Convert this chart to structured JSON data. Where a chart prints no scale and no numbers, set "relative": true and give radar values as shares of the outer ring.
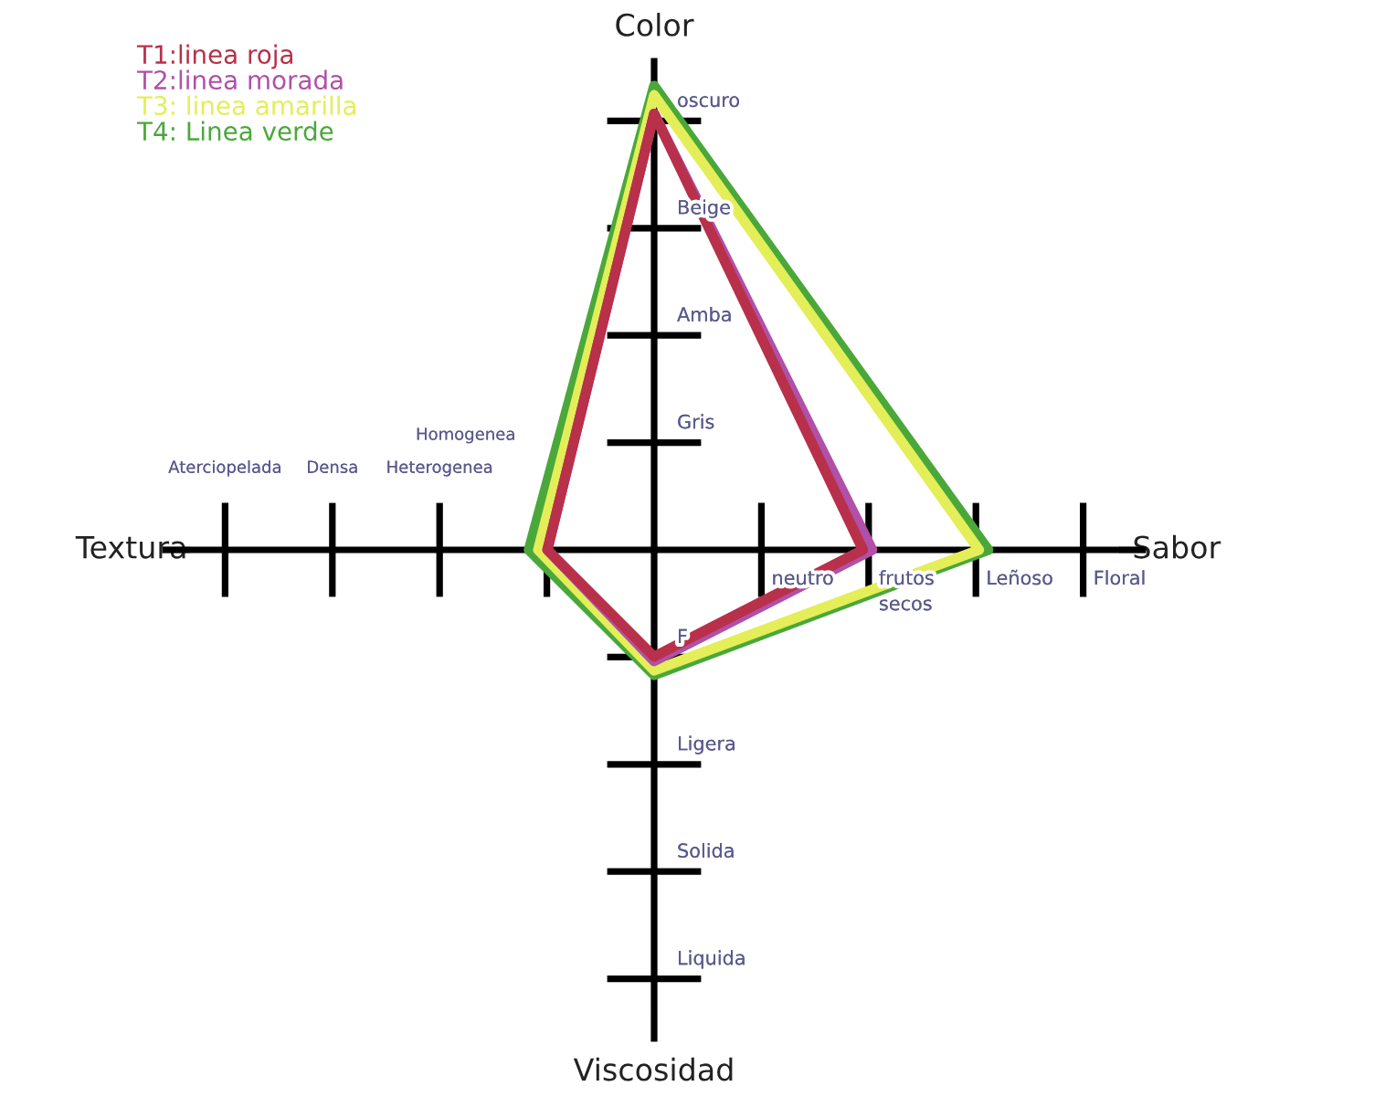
{
  "chart_data": {
    "type": "radar",
    "relative": true,
    "categories": [
      "Color",
      "Sabor",
      "Viscosidad",
      "Textura"
    ],
    "series": [
      {
        "name": "T1:linea roja",
        "color": "#b8304a",
        "values": [
          0.94,
          0.45,
          0.23,
          0.23
        ]
      },
      {
        "name": "T2:linea morada",
        "color": "#b050a8",
        "values": [
          0.94,
          0.47,
          0.24,
          0.23
        ]
      },
      {
        "name": "T3: linea amarilla",
        "color": "#e4ee58",
        "values": [
          0.98,
          0.7,
          0.26,
          0.25
        ]
      },
      {
        "name": "T4: Linea verde",
        "color": "#4aa83a",
        "values": [
          1,
          0.72,
          0.27,
          0.27
        ]
      }
    ],
    "annotations": [
      "Gris",
      "Amba",
      "Beige",
      "oscuro",
      "neutro",
      "frutos\nsecos",
      "Leñoso",
      "Floral",
      "F",
      "Ligera",
      "Solida",
      "Liquida",
      "Homogenea",
      "Heterogenea",
      "Densa",
      "Aterciopelada"
    ]
  }
}
